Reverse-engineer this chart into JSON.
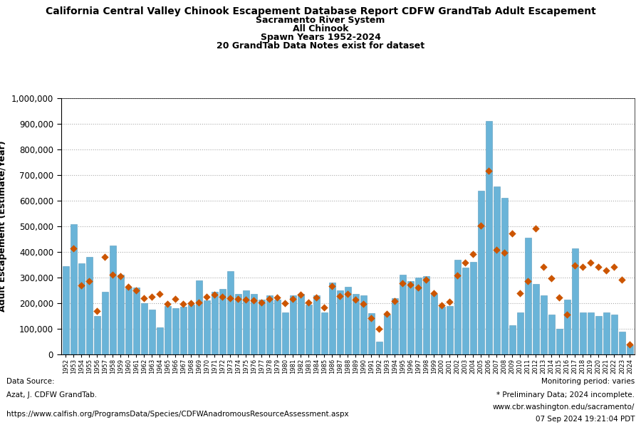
{
  "title_line1": "California Central Valley Chinook Escapement Database Report CDFW GrandTab Adult Escapement",
  "title_line2": "Sacramento River System",
  "title_line3": "All Chinook",
  "title_line4": "Spawn Years 1952-2024",
  "title_line5": "20 GrandTab Data Notes exist for dataset",
  "ylabel": "Adult Escapement (Estimate/Year)",
  "years": [
    1952,
    1953,
    1954,
    1955,
    1956,
    1957,
    1958,
    1959,
    1960,
    1961,
    1962,
    1963,
    1964,
    1965,
    1966,
    1967,
    1968,
    1969,
    1970,
    1971,
    1972,
    1973,
    1974,
    1975,
    1976,
    1977,
    1978,
    1979,
    1980,
    1981,
    1982,
    1983,
    1984,
    1985,
    1986,
    1987,
    1988,
    1989,
    1990,
    1991,
    1992,
    1993,
    1994,
    1995,
    1996,
    1997,
    1998,
    1999,
    2000,
    2001,
    2002,
    2003,
    2004,
    2005,
    2006,
    2007,
    2008,
    2009,
    2010,
    2011,
    2012,
    2013,
    2014,
    2015,
    2016,
    2017,
    2018,
    2019,
    2020,
    2021,
    2022,
    2023,
    2024
  ],
  "bar_values": [
    345000,
    507000,
    355000,
    380000,
    150000,
    245000,
    425000,
    310000,
    260000,
    260000,
    200000,
    175000,
    105000,
    190000,
    180000,
    185000,
    195000,
    290000,
    210000,
    245000,
    255000,
    325000,
    235000,
    250000,
    235000,
    215000,
    230000,
    215000,
    165000,
    230000,
    235000,
    195000,
    230000,
    165000,
    280000,
    250000,
    265000,
    235000,
    230000,
    160000,
    50000,
    155000,
    220000,
    310000,
    285000,
    300000,
    305000,
    235000,
    185000,
    190000,
    370000,
    340000,
    360000,
    640000,
    910000,
    655000,
    610000,
    115000,
    165000,
    455000,
    275000,
    230000,
    155000,
    100000,
    215000,
    415000,
    165000,
    165000,
    150000,
    165000,
    155000,
    90000,
    35000
  ],
  "diamond_values": [
    null,
    415000,
    270000,
    285000,
    170000,
    380000,
    310000,
    305000,
    265000,
    250000,
    220000,
    225000,
    235000,
    198000,
    218000,
    198000,
    199000,
    202000,
    225000,
    232000,
    226000,
    220000,
    218000,
    214000,
    211000,
    204000,
    216000,
    222000,
    199000,
    218000,
    232000,
    202000,
    222000,
    184000,
    267000,
    228000,
    236000,
    215000,
    196000,
    141000,
    99000,
    158000,
    207000,
    277000,
    272000,
    262000,
    292000,
    238000,
    191000,
    206000,
    307000,
    357000,
    392000,
    502000,
    717000,
    407000,
    397000,
    472000,
    240000,
    287000,
    492000,
    342000,
    296000,
    222000,
    156000,
    347000,
    342000,
    357000,
    342000,
    327000,
    342000,
    292000,
    40000
  ],
  "bar_color": "#6ab4d8",
  "bar_edge_color": "#5599bb",
  "diamond_color": "#cc5500",
  "background_color": "#ffffff",
  "ylim": [
    0,
    1000000
  ],
  "yticks": [
    0,
    100000,
    200000,
    300000,
    400000,
    500000,
    600000,
    700000,
    800000,
    900000,
    1000000
  ],
  "footer_left_1": "Data Source:",
  "footer_left_2": "Azat, J. CDFW GrandTab.",
  "footer_left_3": "https://www.calfish.org/ProgramsData/Species/CDFWAnadromousResourceAssessment.aspx",
  "footer_right_1": "Monitoring period: varies",
  "footer_right_2": "* Preliminary Data; 2024 incomplete.",
  "footer_right_3": "www.cbr.washington.edu/sacramento/",
  "footer_right_4": "07 Sep 2024 19:21:04 PDT"
}
